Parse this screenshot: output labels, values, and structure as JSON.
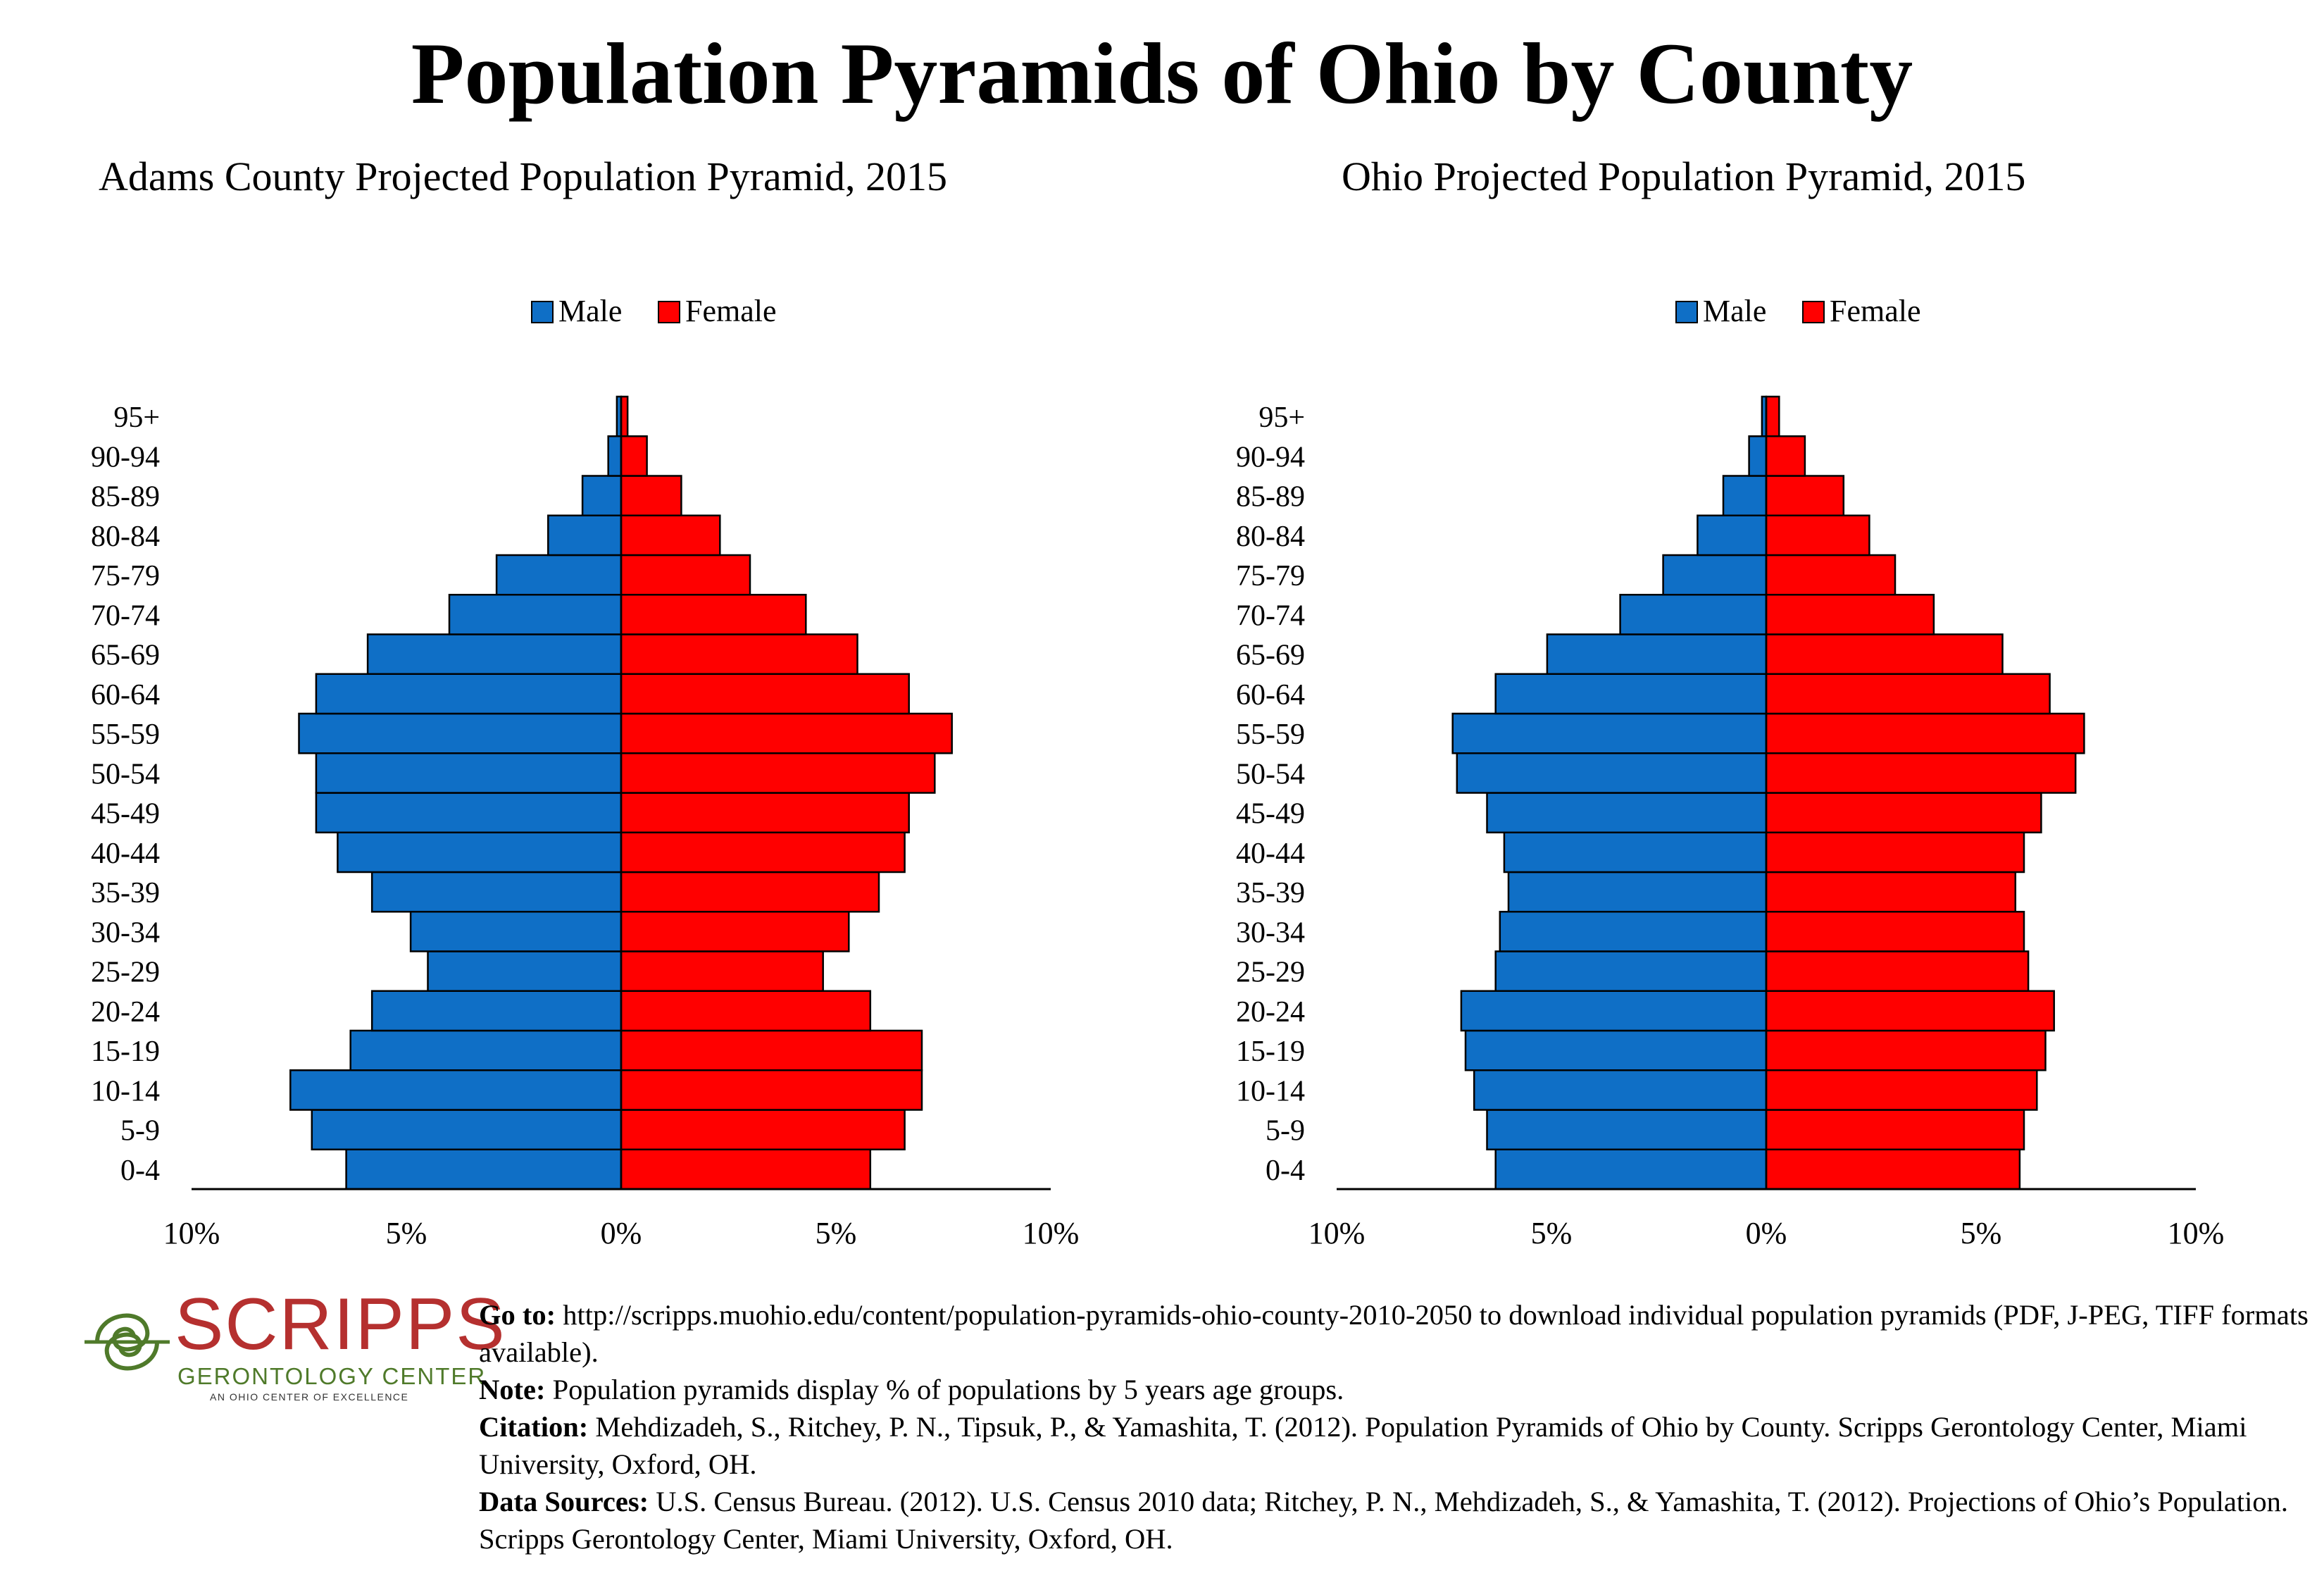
{
  "title": "Population Pyramids of Ohio by County",
  "colors": {
    "male": "#0f6fc6",
    "female": "#ff0000",
    "logo_red": "#b5302f",
    "logo_green": "#4f7a2a"
  },
  "chart_data": [
    {
      "type": "bar",
      "title": "Adams County Projected Population Pyramid, 2015",
      "orientation": "horizontal-pyramid",
      "legend": {
        "placement": "top-center",
        "entries": [
          "Male",
          "Female"
        ]
      },
      "categories": [
        "0-4",
        "5-9",
        "10-14",
        "15-19",
        "20-24",
        "25-29",
        "30-34",
        "35-39",
        "40-44",
        "45-49",
        "50-54",
        "55-59",
        "60-64",
        "65-69",
        "70-74",
        "75-79",
        "80-84",
        "85-89",
        "90-94",
        "95+"
      ],
      "series": [
        {
          "name": "Male",
          "values": [
            6.4,
            7.2,
            7.7,
            6.3,
            5.8,
            4.5,
            4.9,
            5.8,
            6.6,
            7.1,
            7.1,
            7.5,
            7.1,
            5.9,
            4.0,
            2.9,
            1.7,
            0.9,
            0.3,
            0.1
          ]
        },
        {
          "name": "Female",
          "values": [
            5.8,
            6.6,
            7.0,
            7.0,
            5.8,
            4.7,
            5.3,
            6.0,
            6.6,
            6.7,
            7.3,
            7.7,
            6.7,
            5.5,
            4.3,
            3.0,
            2.3,
            1.4,
            0.6,
            0.15
          ]
        }
      ],
      "xlim": [
        -10,
        10
      ],
      "x_ticks": [
        "10%",
        "5%",
        "0%",
        "5%",
        "10%"
      ]
    },
    {
      "type": "bar",
      "title": "Ohio Projected Population Pyramid, 2015",
      "orientation": "horizontal-pyramid",
      "legend": {
        "placement": "top-center",
        "entries": [
          "Male",
          "Female"
        ]
      },
      "categories": [
        "0-4",
        "5-9",
        "10-14",
        "15-19",
        "20-24",
        "25-29",
        "30-34",
        "35-39",
        "40-44",
        "45-49",
        "50-54",
        "55-59",
        "60-64",
        "65-69",
        "70-74",
        "75-79",
        "80-84",
        "85-89",
        "90-94",
        "95+"
      ],
      "series": [
        {
          "name": "Male",
          "values": [
            6.3,
            6.5,
            6.8,
            7.0,
            7.1,
            6.3,
            6.2,
            6.0,
            6.1,
            6.5,
            7.2,
            7.3,
            6.3,
            5.1,
            3.4,
            2.4,
            1.6,
            1.0,
            0.4,
            0.1
          ]
        },
        {
          "name": "Female",
          "values": [
            5.9,
            6.0,
            6.3,
            6.5,
            6.7,
            6.1,
            6.0,
            5.8,
            6.0,
            6.4,
            7.2,
            7.4,
            6.6,
            5.5,
            3.9,
            3.0,
            2.4,
            1.8,
            0.9,
            0.3
          ]
        }
      ],
      "xlim": [
        -10,
        10
      ],
      "x_ticks": [
        "10%",
        "5%",
        "0%",
        "5%",
        "10%"
      ]
    }
  ],
  "logo": {
    "word": "SCRIPPS",
    "sub": "GERONTOLOGY CENTER",
    "tag": "AN OHIO CENTER OF EXCELLENCE"
  },
  "footer": {
    "goto_label": "Go to:",
    "goto_text": "http://scripps.muohio.edu/content/population-pyramids-ohio-county-2010-2050 to download individual population pyramids (PDF, J-PEG, TIFF formats available).",
    "note_label": "Note:",
    "note_text": "Population pyramids display % of populations by 5 years age groups.",
    "citation_label": "Citation:",
    "citation_text": "Mehdizadeh, S., Ritchey, P. N., Tipsuk, P., & Yamashita, T. (2012). Population Pyramids of Ohio by County. Scripps Gerontology Center, Miami University, Oxford, OH.",
    "sources_label": "Data Sources:",
    "sources_text": "U.S. Census Bureau. (2012). U.S. Census 2010 data; Ritchey, P. N., Mehdizadeh, S., & Yamashita, T. (2012). Projections of Ohio’s Population. Scripps Gerontology Center, Miami University, Oxford, OH."
  }
}
